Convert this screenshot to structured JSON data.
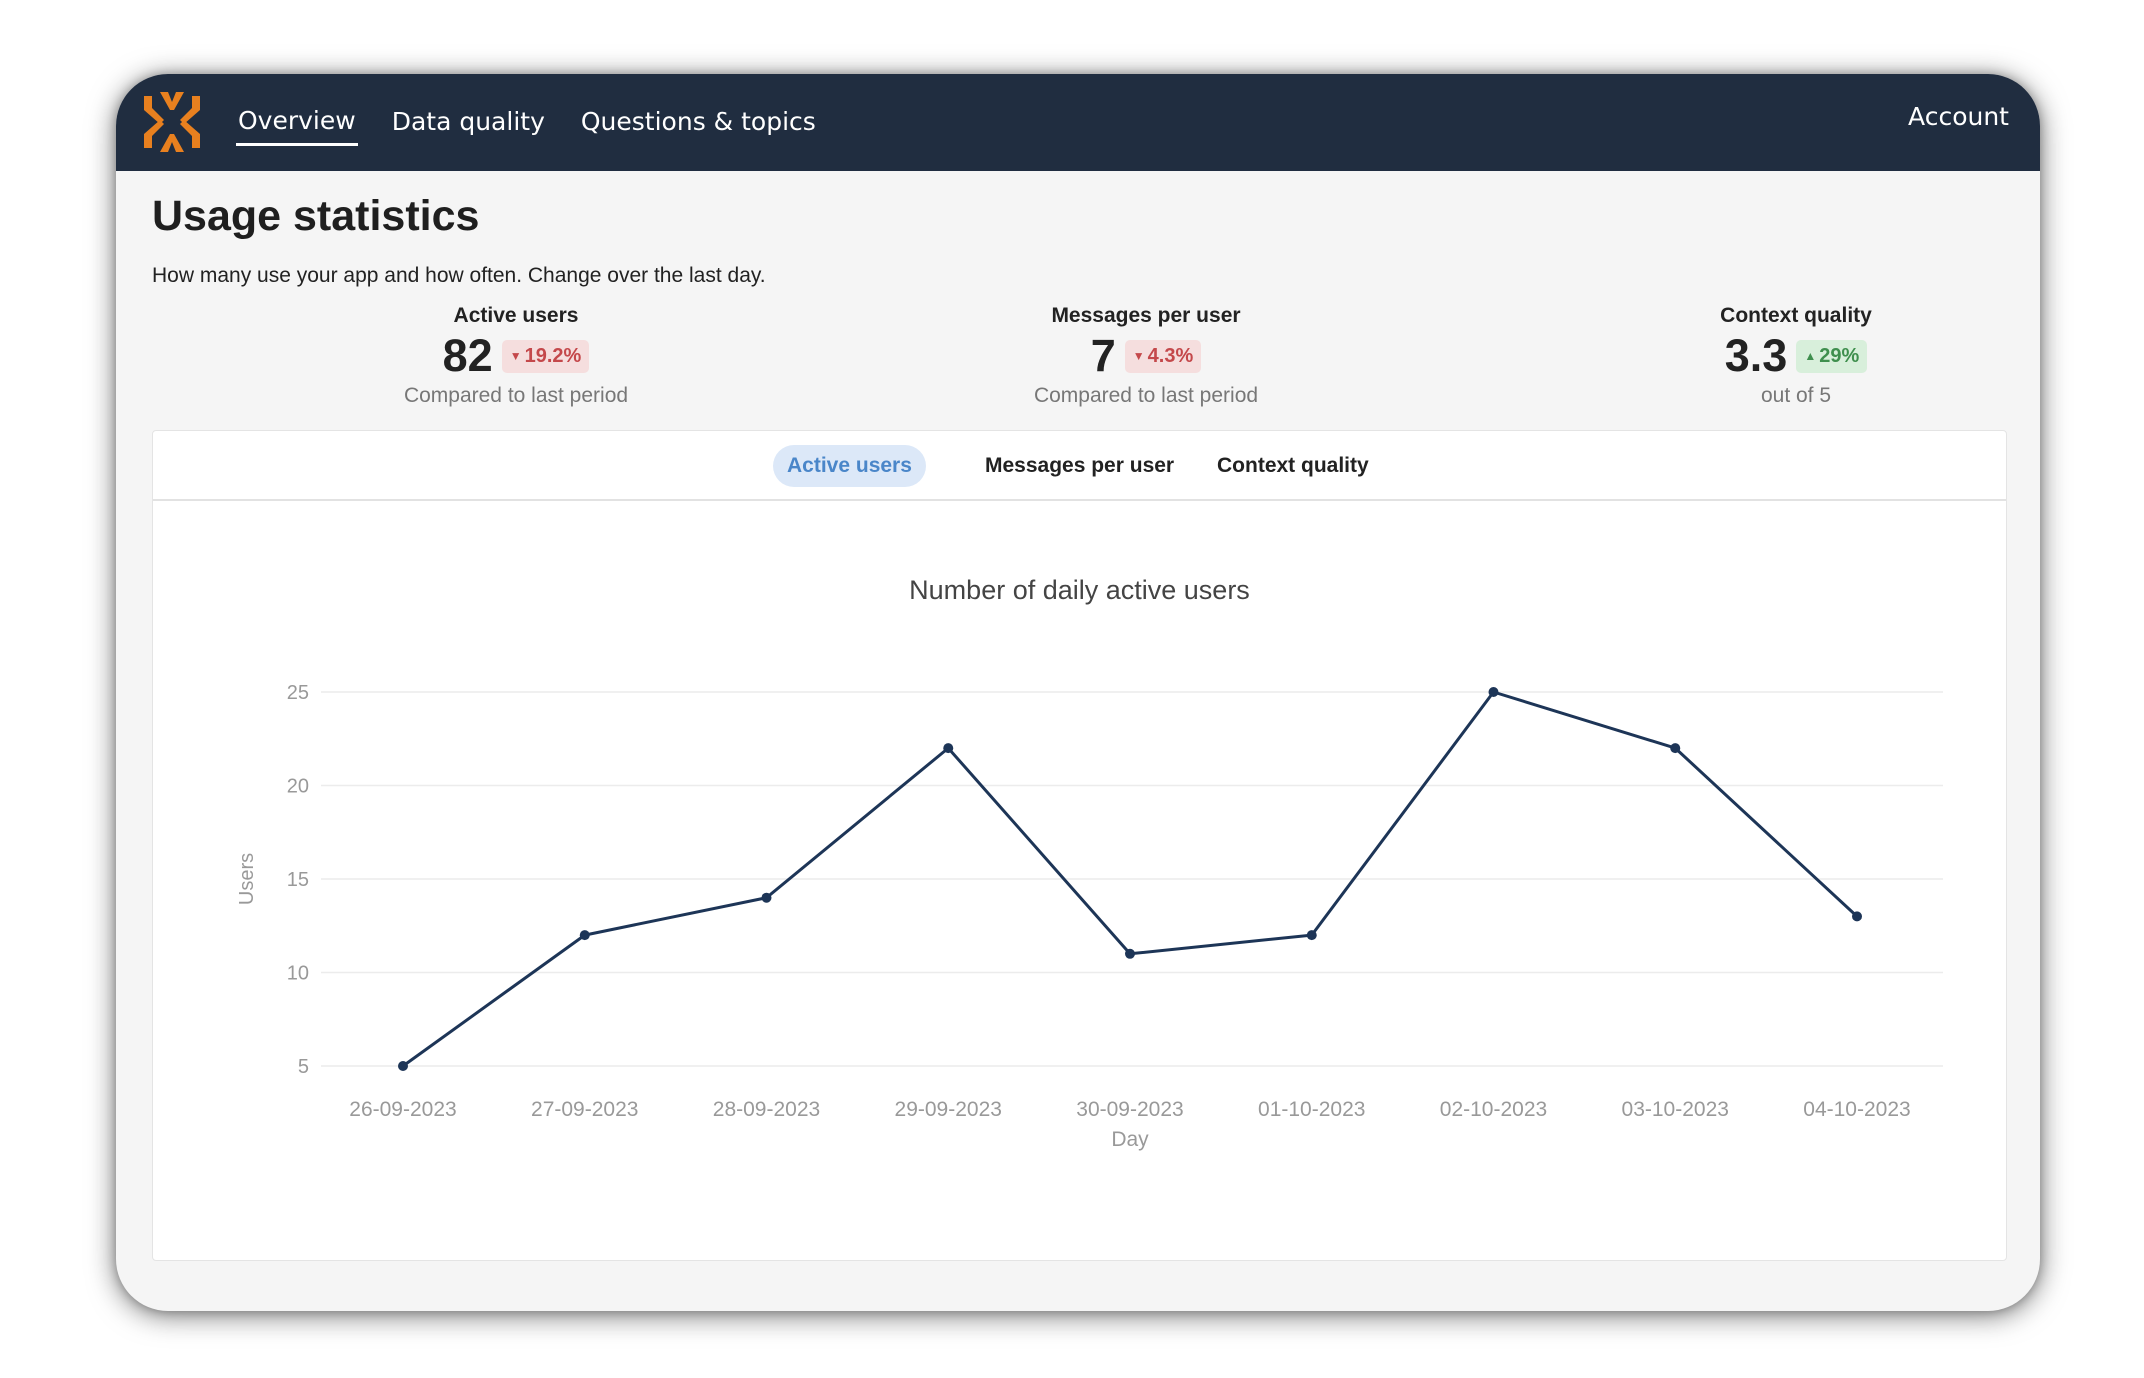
{
  "nav": {
    "items": [
      {
        "label": "Overview",
        "active": true
      },
      {
        "label": "Data quality",
        "active": false
      },
      {
        "label": "Questions & topics",
        "active": false
      }
    ],
    "account_label": "Account",
    "logo_icon": "asterisk-arrows-logo-icon",
    "logo_color": "#e8801f"
  },
  "page": {
    "title": "Usage statistics",
    "subtitle": "How many use your app and how often. Change over the last day."
  },
  "stats": [
    {
      "label": "Active users",
      "value": "82",
      "change": "19.2%",
      "direction": "down",
      "caption": "Compared to last period"
    },
    {
      "label": "Messages per user",
      "value": "7",
      "change": "4.3%",
      "direction": "down",
      "caption": "Compared to last period"
    },
    {
      "label": "Context quality",
      "value": "3.3",
      "change": "29%",
      "direction": "up",
      "caption": "out of 5"
    }
  ],
  "tabs": [
    {
      "label": "Active users",
      "active": true
    },
    {
      "label": "Messages per user",
      "active": false
    },
    {
      "label": "Context quality",
      "active": false
    }
  ],
  "colors": {
    "navbar": "#202d40",
    "line": "#1d3557",
    "badge_down_text": "#c4484b",
    "badge_up_text": "#3f8f4e"
  },
  "chart_data": {
    "type": "line",
    "title": "Number of daily active users",
    "xlabel": "Day",
    "ylabel": "Users",
    "categories": [
      "26-09-2023",
      "27-09-2023",
      "28-09-2023",
      "29-09-2023",
      "30-09-2023",
      "01-10-2023",
      "02-10-2023",
      "03-10-2023",
      "04-10-2023"
    ],
    "values": [
      5,
      12,
      14,
      22,
      11,
      12,
      25,
      22,
      13
    ],
    "yticks": [
      5,
      10,
      15,
      20,
      25
    ],
    "ylim": [
      5,
      25
    ],
    "grid": true,
    "legend": "none"
  }
}
